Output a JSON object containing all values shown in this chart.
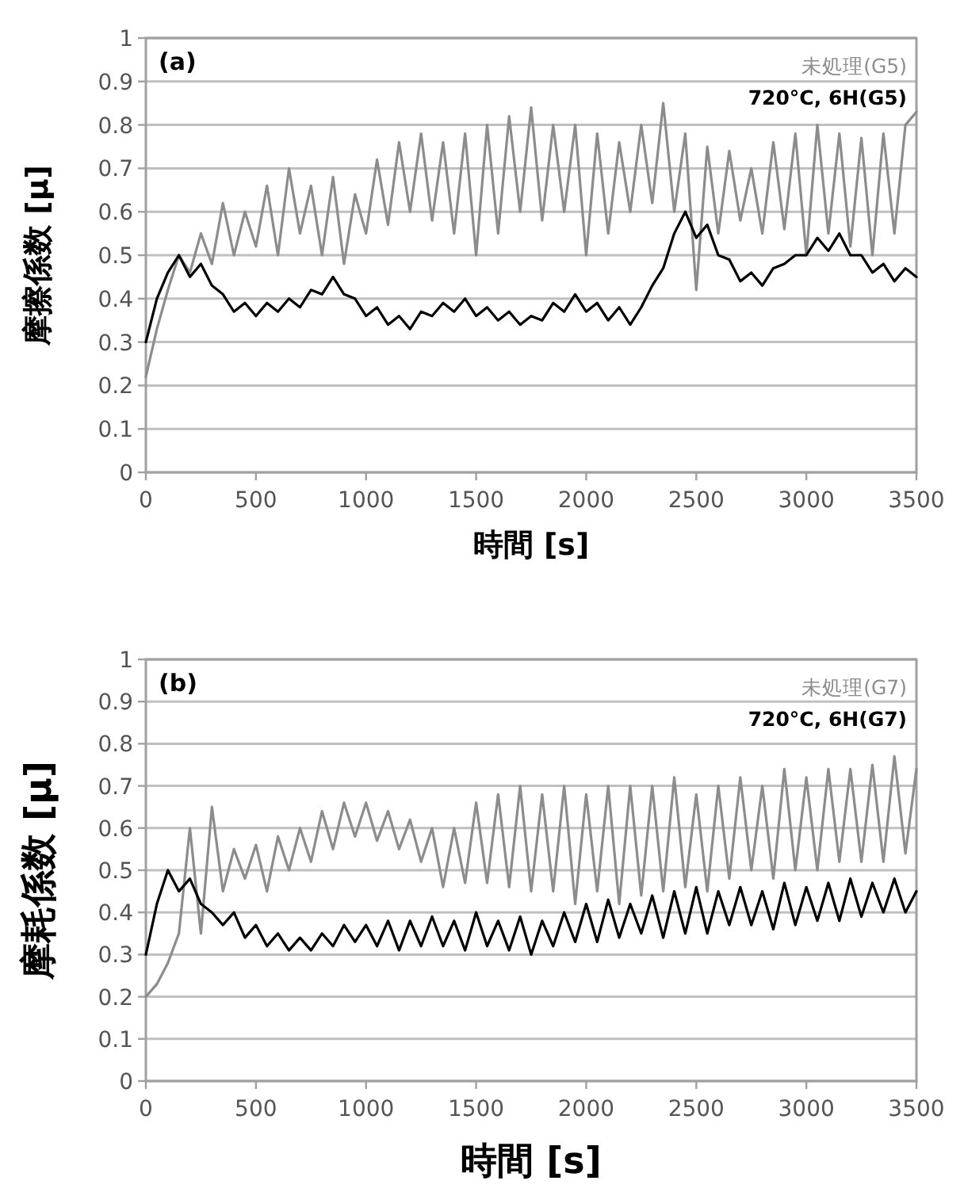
{
  "chart_data": [
    {
      "type": "line",
      "title": "(a)",
      "xlabel": "時間 [s]",
      "ylabel": "摩擦係数 [μ]",
      "xlim": [
        0,
        3500
      ],
      "ylim": [
        0,
        1
      ],
      "xticks": [
        0,
        500,
        1000,
        1500,
        2000,
        2500,
        3000,
        3500
      ],
      "yticks": [
        0,
        0.1,
        0.2,
        0.3,
        0.4,
        0.5,
        0.6,
        0.7,
        0.8,
        0.9,
        1
      ],
      "grid": "y",
      "legend": "top right",
      "marker": "none",
      "line_style": "solid",
      "x": [
        0,
        50,
        100,
        150,
        200,
        250,
        300,
        350,
        400,
        450,
        500,
        550,
        600,
        650,
        700,
        750,
        800,
        850,
        900,
        950,
        1000,
        1050,
        1100,
        1150,
        1200,
        1250,
        1300,
        1350,
        1400,
        1450,
        1500,
        1550,
        1600,
        1650,
        1700,
        1750,
        1800,
        1850,
        1900,
        1950,
        2000,
        2050,
        2100,
        2150,
        2200,
        2250,
        2300,
        2350,
        2400,
        2450,
        2500,
        2550,
        2600,
        2650,
        2700,
        2750,
        2800,
        2850,
        2900,
        2950,
        3000,
        3050,
        3100,
        3150,
        3200,
        3250,
        3300,
        3350,
        3400,
        3450,
        3500
      ],
      "series": [
        {
          "name": "未処理(G5)",
          "color": "#8c8c8c",
          "values": [
            0.22,
            0.33,
            0.42,
            0.5,
            0.46,
            0.55,
            0.48,
            0.62,
            0.5,
            0.6,
            0.52,
            0.66,
            0.5,
            0.7,
            0.55,
            0.66,
            0.5,
            0.68,
            0.48,
            0.64,
            0.55,
            0.72,
            0.57,
            0.76,
            0.6,
            0.78,
            0.58,
            0.76,
            0.55,
            0.78,
            0.5,
            0.8,
            0.55,
            0.82,
            0.6,
            0.84,
            0.58,
            0.8,
            0.6,
            0.8,
            0.5,
            0.78,
            0.55,
            0.76,
            0.6,
            0.8,
            0.62,
            0.85,
            0.6,
            0.78,
            0.42,
            0.75,
            0.55,
            0.74,
            0.58,
            0.7,
            0.55,
            0.76,
            0.56,
            0.78,
            0.5,
            0.8,
            0.55,
            0.78,
            0.52,
            0.77,
            0.5,
            0.78,
            0.55,
            0.8,
            0.83
          ]
        },
        {
          "name": "720°C, 6H(G5)",
          "color": "#000000",
          "values": [
            0.3,
            0.4,
            0.46,
            0.5,
            0.45,
            0.48,
            0.43,
            0.41,
            0.37,
            0.39,
            0.36,
            0.39,
            0.37,
            0.4,
            0.38,
            0.42,
            0.41,
            0.45,
            0.41,
            0.4,
            0.36,
            0.38,
            0.34,
            0.36,
            0.33,
            0.37,
            0.36,
            0.39,
            0.37,
            0.4,
            0.36,
            0.38,
            0.35,
            0.37,
            0.34,
            0.36,
            0.35,
            0.39,
            0.37,
            0.41,
            0.37,
            0.39,
            0.35,
            0.38,
            0.34,
            0.38,
            0.43,
            0.47,
            0.55,
            0.6,
            0.54,
            0.57,
            0.5,
            0.49,
            0.44,
            0.46,
            0.43,
            0.47,
            0.48,
            0.5,
            0.5,
            0.54,
            0.51,
            0.55,
            0.5,
            0.5,
            0.46,
            0.48,
            0.44,
            0.47,
            0.45
          ]
        }
      ]
    },
    {
      "type": "line",
      "title": "(b)",
      "xlabel": "時間 [s]",
      "ylabel": "摩耗係数 [μ]",
      "xlim": [
        0,
        3500
      ],
      "ylim": [
        0,
        1
      ],
      "xticks": [
        0,
        500,
        1000,
        1500,
        2000,
        2500,
        3000,
        3500
      ],
      "yticks": [
        0,
        0.1,
        0.2,
        0.3,
        0.4,
        0.5,
        0.6,
        0.7,
        0.8,
        0.9,
        1
      ],
      "grid": "y",
      "legend": "top right",
      "marker": "none",
      "line_style": "solid",
      "x": [
        0,
        50,
        100,
        150,
        200,
        250,
        300,
        350,
        400,
        450,
        500,
        550,
        600,
        650,
        700,
        750,
        800,
        850,
        900,
        950,
        1000,
        1050,
        1100,
        1150,
        1200,
        1250,
        1300,
        1350,
        1400,
        1450,
        1500,
        1550,
        1600,
        1650,
        1700,
        1750,
        1800,
        1850,
        1900,
        1950,
        2000,
        2050,
        2100,
        2150,
        2200,
        2250,
        2300,
        2350,
        2400,
        2450,
        2500,
        2550,
        2600,
        2650,
        2700,
        2750,
        2800,
        2850,
        2900,
        2950,
        3000,
        3050,
        3100,
        3150,
        3200,
        3250,
        3300,
        3350,
        3400,
        3450,
        3500
      ],
      "series": [
        {
          "name": "未処理(G7)",
          "color": "#8c8c8c",
          "values": [
            0.2,
            0.23,
            0.28,
            0.35,
            0.6,
            0.35,
            0.65,
            0.45,
            0.55,
            0.48,
            0.56,
            0.45,
            0.58,
            0.5,
            0.6,
            0.52,
            0.64,
            0.55,
            0.66,
            0.58,
            0.66,
            0.57,
            0.64,
            0.55,
            0.62,
            0.52,
            0.6,
            0.46,
            0.6,
            0.47,
            0.66,
            0.47,
            0.68,
            0.46,
            0.7,
            0.45,
            0.68,
            0.45,
            0.7,
            0.42,
            0.68,
            0.45,
            0.7,
            0.42,
            0.7,
            0.44,
            0.7,
            0.45,
            0.72,
            0.46,
            0.68,
            0.45,
            0.7,
            0.48,
            0.72,
            0.5,
            0.7,
            0.48,
            0.74,
            0.5,
            0.72,
            0.5,
            0.74,
            0.52,
            0.74,
            0.52,
            0.75,
            0.52,
            0.77,
            0.54,
            0.74
          ]
        },
        {
          "name": "720°C, 6H(G7)",
          "color": "#000000",
          "values": [
            0.3,
            0.42,
            0.5,
            0.45,
            0.48,
            0.42,
            0.4,
            0.37,
            0.4,
            0.34,
            0.37,
            0.32,
            0.35,
            0.31,
            0.34,
            0.31,
            0.35,
            0.32,
            0.37,
            0.33,
            0.37,
            0.32,
            0.38,
            0.31,
            0.38,
            0.32,
            0.39,
            0.32,
            0.38,
            0.31,
            0.4,
            0.32,
            0.38,
            0.31,
            0.39,
            0.3,
            0.38,
            0.32,
            0.4,
            0.33,
            0.42,
            0.33,
            0.43,
            0.34,
            0.42,
            0.35,
            0.44,
            0.34,
            0.45,
            0.35,
            0.46,
            0.35,
            0.45,
            0.37,
            0.46,
            0.37,
            0.45,
            0.36,
            0.47,
            0.37,
            0.46,
            0.38,
            0.47,
            0.38,
            0.48,
            0.39,
            0.47,
            0.4,
            0.48,
            0.4,
            0.45
          ]
        }
      ]
    }
  ]
}
